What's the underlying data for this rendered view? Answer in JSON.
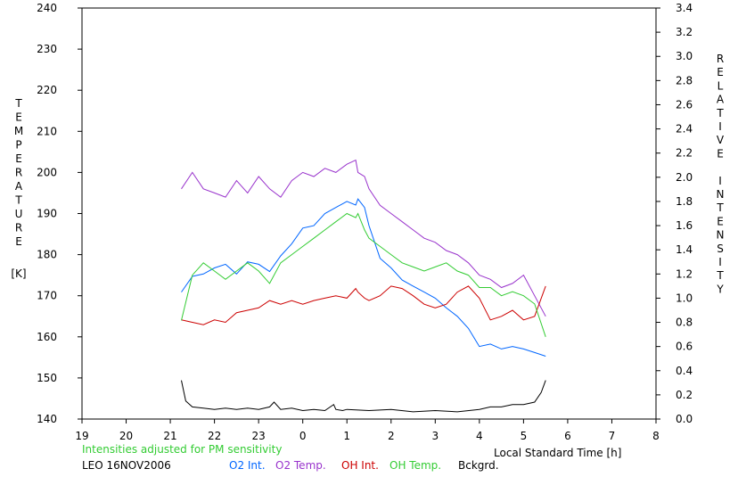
{
  "chart_data": {
    "type": "line",
    "x_unit_label": "Local Standard Time [h]",
    "xlim": [
      19,
      32
    ],
    "x_ticks": [
      19,
      20,
      21,
      22,
      23,
      24,
      25,
      26,
      27,
      28,
      29,
      30,
      31,
      32
    ],
    "x_tick_labels": [
      "19",
      "20",
      "21",
      "22",
      "23",
      "0",
      "1",
      "2",
      "3",
      "4",
      "5",
      "6",
      "7",
      "8"
    ],
    "ylabel_left": [
      "T",
      "E",
      "M",
      "P",
      "E",
      "R",
      "A",
      "T",
      "U",
      "R",
      "E"
    ],
    "ylabel_left_unit": "[K]",
    "ylim_left": [
      140,
      240
    ],
    "y_ticks_left": [
      "140",
      "150",
      "160",
      "170",
      "180",
      "190",
      "200",
      "210",
      "220",
      "230",
      "240"
    ],
    "ylabel_right_words": [
      [
        "R",
        "E",
        "L",
        "A",
        "T",
        "I",
        "V",
        "E"
      ],
      [
        "I",
        "N",
        "T",
        "E",
        "N",
        "S",
        "I",
        "T",
        "Y"
      ]
    ],
    "ylim_right": [
      0,
      3.4
    ],
    "y_ticks_right": [
      "0.0",
      "0.2",
      "0.4",
      "0.6",
      "0.8",
      "1.0",
      "1.2",
      "1.4",
      "1.6",
      "1.8",
      "2.0",
      "2.2",
      "2.4",
      "2.6",
      "2.8",
      "3.0",
      "3.2",
      "3.4"
    ],
    "note": "Intensities adjusted for PM sensitivity",
    "station": "LEO 16NOV2006",
    "grid": false,
    "series": [
      {
        "name": "O2 Int.",
        "axis": "right",
        "color": "#0066ff",
        "x": [
          21.25,
          21.5,
          21.75,
          22.0,
          22.25,
          22.5,
          22.75,
          23.0,
          23.25,
          23.5,
          23.75,
          24.0,
          24.25,
          24.5,
          24.75,
          25.0,
          25.2,
          25.25,
          25.4,
          25.5,
          25.75,
          26.0,
          26.25,
          26.5,
          26.75,
          27.0,
          27.25,
          27.5,
          27.75,
          28.0,
          28.25,
          28.5,
          28.75,
          29.0,
          29.25,
          29.5
        ],
        "y": [
          1.05,
          1.18,
          1.2,
          1.25,
          1.28,
          1.2,
          1.3,
          1.28,
          1.22,
          1.35,
          1.45,
          1.58,
          1.6,
          1.7,
          1.75,
          1.8,
          1.77,
          1.82,
          1.75,
          1.6,
          1.33,
          1.25,
          1.15,
          1.1,
          1.05,
          1.0,
          0.92,
          0.85,
          0.75,
          0.6,
          0.62,
          0.58,
          0.6,
          0.58,
          0.55,
          0.52
        ]
      },
      {
        "name": "O2 Temp.",
        "axis": "left",
        "color": "#9933cc",
        "x": [
          21.25,
          21.5,
          21.75,
          22.0,
          22.25,
          22.5,
          22.75,
          23.0,
          23.25,
          23.5,
          23.75,
          24.0,
          24.25,
          24.5,
          24.75,
          25.0,
          25.2,
          25.25,
          25.4,
          25.5,
          25.75,
          26.0,
          26.25,
          26.5,
          26.75,
          27.0,
          27.25,
          27.5,
          27.75,
          28.0,
          28.25,
          28.5,
          28.75,
          29.0,
          29.25,
          29.5
        ],
        "y": [
          196,
          200,
          196,
          195,
          194,
          198,
          195,
          199,
          196,
          194,
          198,
          200,
          199,
          201,
          200,
          202,
          203,
          200,
          199,
          196,
          192,
          190,
          188,
          186,
          184,
          183,
          181,
          180,
          178,
          175,
          174,
          172,
          173,
          175,
          170,
          165
        ]
      },
      {
        "name": "OH Int.",
        "axis": "right",
        "color": "#cc0000",
        "x": [
          21.25,
          21.5,
          21.75,
          22.0,
          22.25,
          22.5,
          22.75,
          23.0,
          23.25,
          23.5,
          23.75,
          24.0,
          24.25,
          24.5,
          24.75,
          25.0,
          25.2,
          25.25,
          25.4,
          25.5,
          25.75,
          26.0,
          26.25,
          26.5,
          26.75,
          27.0,
          27.25,
          27.5,
          27.75,
          28.0,
          28.25,
          28.5,
          28.75,
          29.0,
          29.25,
          29.5
        ],
        "y": [
          0.82,
          0.8,
          0.78,
          0.82,
          0.8,
          0.88,
          0.9,
          0.92,
          0.98,
          0.95,
          0.98,
          0.95,
          0.98,
          1.0,
          1.02,
          1.0,
          1.08,
          1.05,
          1.0,
          0.98,
          1.02,
          1.1,
          1.08,
          1.02,
          0.95,
          0.92,
          0.95,
          1.05,
          1.1,
          1.0,
          0.82,
          0.85,
          0.9,
          0.82,
          0.85,
          1.1
        ]
      },
      {
        "name": "OH Temp.",
        "axis": "left",
        "color": "#33cc33",
        "x": [
          21.25,
          21.5,
          21.75,
          22.0,
          22.25,
          22.5,
          22.75,
          23.0,
          23.25,
          23.5,
          23.75,
          24.0,
          24.25,
          24.5,
          24.75,
          25.0,
          25.2,
          25.25,
          25.4,
          25.5,
          25.75,
          26.0,
          26.25,
          26.5,
          26.75,
          27.0,
          27.25,
          27.5,
          27.75,
          28.0,
          28.25,
          28.5,
          28.75,
          29.0,
          29.25,
          29.5
        ],
        "y": [
          164,
          175,
          178,
          176,
          174,
          176,
          178,
          176,
          173,
          178,
          180,
          182,
          184,
          186,
          188,
          190,
          189,
          190,
          186,
          184,
          182,
          180,
          178,
          177,
          176,
          177,
          178,
          176,
          175,
          172,
          172,
          170,
          171,
          170,
          168,
          160
        ]
      },
      {
        "name": "Bckgrd.",
        "axis": "right",
        "color": "#000000",
        "x": [
          21.25,
          21.35,
          21.5,
          21.75,
          22.0,
          22.25,
          22.5,
          22.75,
          23.0,
          23.25,
          23.35,
          23.5,
          23.75,
          24.0,
          24.25,
          24.5,
          24.7,
          24.75,
          24.9,
          25.0,
          25.5,
          26.0,
          26.5,
          27.0,
          27.5,
          28.0,
          28.25,
          28.5,
          28.75,
          29.0,
          29.25,
          29.4,
          29.5
        ],
        "y": [
          0.32,
          0.15,
          0.1,
          0.09,
          0.08,
          0.09,
          0.08,
          0.09,
          0.08,
          0.1,
          0.14,
          0.08,
          0.09,
          0.07,
          0.08,
          0.07,
          0.12,
          0.08,
          0.07,
          0.08,
          0.07,
          0.08,
          0.06,
          0.07,
          0.06,
          0.08,
          0.1,
          0.1,
          0.12,
          0.12,
          0.14,
          0.22,
          0.32
        ]
      }
    ]
  }
}
